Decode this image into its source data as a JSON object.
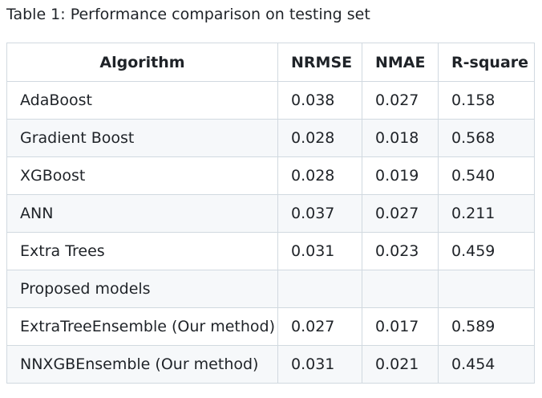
{
  "caption": "Table 1: Performance comparison on testing set",
  "table": {
    "headers": [
      "Algorithm",
      "NRMSE",
      "NMAE",
      "R-square"
    ],
    "rows": [
      [
        "AdaBoost",
        "0.038",
        "0.027",
        "0.158"
      ],
      [
        "Gradient Boost",
        "0.028",
        "0.018",
        "0.568"
      ],
      [
        "XGBoost",
        "0.028",
        "0.019",
        "0.540"
      ],
      [
        "ANN",
        "0.037",
        "0.027",
        "0.211"
      ],
      [
        "Extra Trees",
        "0.031",
        "0.023",
        "0.459"
      ],
      [
        "Proposed models",
        "",
        "",
        ""
      ],
      [
        "ExtraTreeEnsemble (Our method)",
        "0.027",
        "0.017",
        "0.589"
      ],
      [
        "NNXGBEnsemble (Our method)",
        "0.031",
        "0.021",
        "0.454"
      ]
    ]
  }
}
